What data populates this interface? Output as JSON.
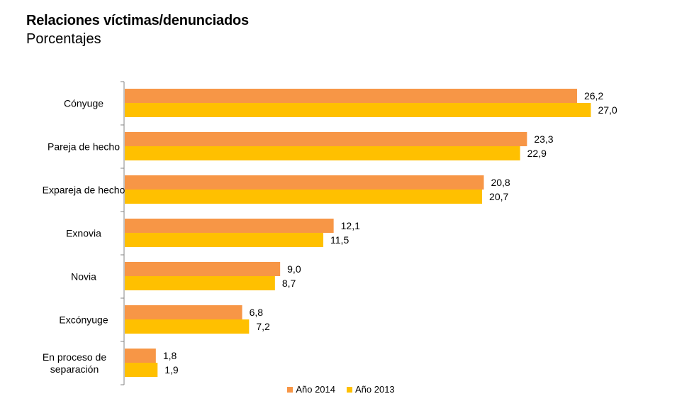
{
  "chart_data": {
    "type": "bar",
    "orientation": "horizontal",
    "title": "Relaciones víctimas/denunciados",
    "subtitle": "Porcentajes",
    "categories": [
      [
        "Cónyuge"
      ],
      [
        "Pareja de hecho"
      ],
      [
        "Expareja de hecho"
      ],
      [
        "Exnovia"
      ],
      [
        "Novia"
      ],
      [
        "Excónyuge"
      ],
      [
        "En proceso de",
        "separación"
      ]
    ],
    "series": [
      {
        "name": "Año 2014",
        "color": "#F79646",
        "values": [
          26.2,
          23.3,
          20.8,
          12.1,
          9.0,
          6.8,
          1.8
        ],
        "labels": [
          "26,2",
          "23,3",
          "20,8",
          "12,1",
          "9,0",
          "6,8",
          "1,8"
        ]
      },
      {
        "name": "Año 2013",
        "color": "#FFC000",
        "values": [
          27.0,
          22.9,
          20.7,
          11.5,
          8.7,
          7.2,
          1.9
        ],
        "labels": [
          "27,0",
          "22,9",
          "20,7",
          "11,5",
          "8,7",
          "7,2",
          "1,9"
        ]
      }
    ],
    "xlim": [
      0,
      30
    ],
    "legend_position": "bottom"
  }
}
